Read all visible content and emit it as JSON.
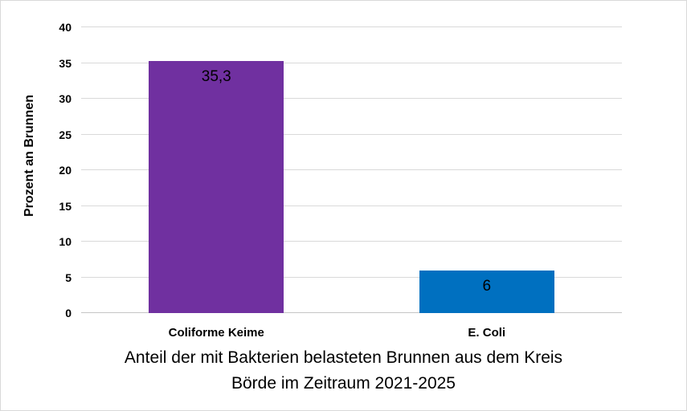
{
  "chart_data": {
    "type": "bar",
    "title": "Anteil der mit Bakterien belasteten Brunnen aus dem Kreis Börde im Zeitraum 2021-2025",
    "title_lines": [
      "Anteil der mit Bakterien belasteten Brunnen aus dem Kreis",
      "Börde im Zeitraum 2021-2025"
    ],
    "xlabel": "",
    "ylabel": "Prozent an Brunnen",
    "categories": [
      "Coliforme Keime",
      "E. Coli"
    ],
    "values": [
      35.3,
      6
    ],
    "value_labels": [
      "35,3",
      "6"
    ],
    "bar_colors": [
      "#7030A0",
      "#0070C0"
    ],
    "ylim": [
      0,
      40
    ],
    "yticks": [
      0,
      5,
      10,
      15,
      20,
      25,
      30,
      35,
      40
    ],
    "grid": "horizontal",
    "gridline_color": "#D9D9D9",
    "legend": "none"
  }
}
